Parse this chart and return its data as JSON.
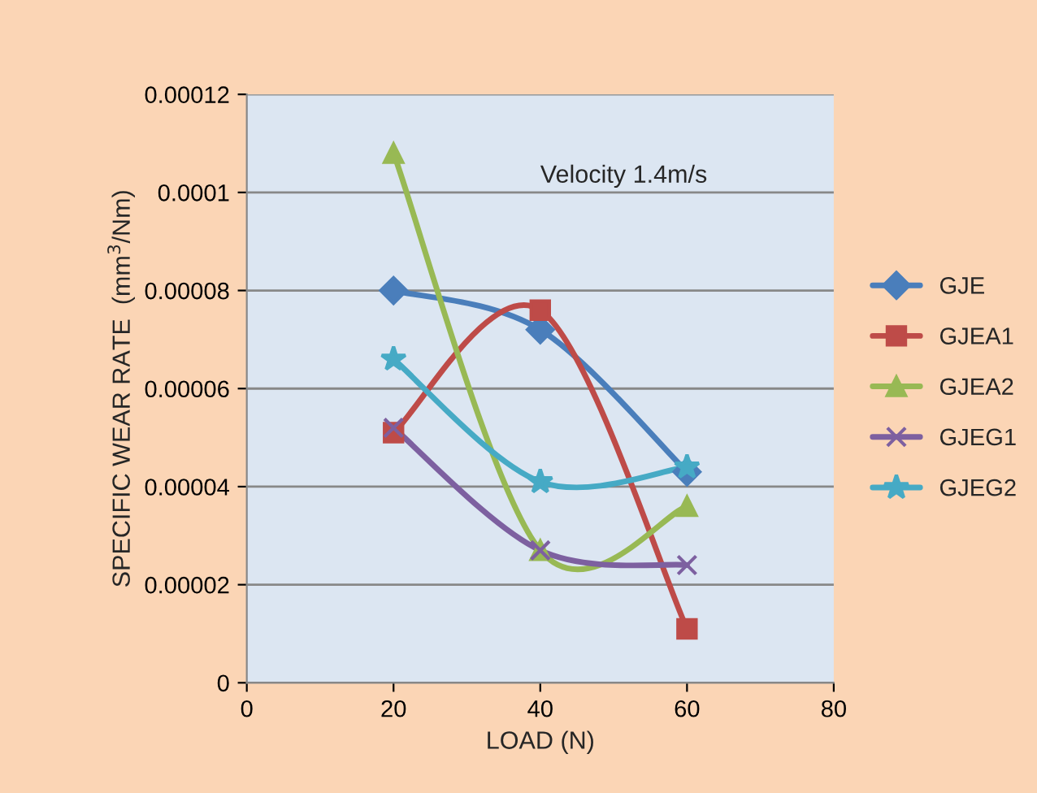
{
  "chart_data": {
    "type": "line",
    "xlabel": "LOAD (N)",
    "ylabel": "SPECIFIC WEAR RATE  (mm$^{3}$/Nm)",
    "annotations": [
      "Velocity 1.4m/s"
    ],
    "x": [
      20,
      40,
      60
    ],
    "series": [
      {
        "name": "GJE",
        "color": "#4a7ebb",
        "marker": "diamond",
        "values": [
          8e-05,
          7.2e-05,
          4.3e-05
        ]
      },
      {
        "name": "GJEA1",
        "color": "#be4b48",
        "marker": "square",
        "values": [
          5.1e-05,
          7.6e-05,
          1.1e-05
        ]
      },
      {
        "name": "GJEA2",
        "color": "#98b954",
        "marker": "triangle",
        "values": [
          0.000108,
          2.7e-05,
          3.6e-05
        ]
      },
      {
        "name": "GJEG1",
        "color": "#7d60a0",
        "marker": "cross",
        "values": [
          5.2e-05,
          2.7e-05,
          2.4e-05
        ]
      },
      {
        "name": "GJEG2",
        "color": "#46aac5",
        "marker": "star",
        "values": [
          6.6e-05,
          4.1e-05,
          4.4e-05
        ]
      }
    ],
    "xlim": [
      0,
      80
    ],
    "xticks": [
      0,
      20,
      40,
      60,
      80
    ],
    "ylim": [
      0,
      0.00012
    ],
    "yticks": [
      0,
      {
        "value": 2e-05,
        "label": "0.00002"
      },
      {
        "value": 4e-05,
        "label": "0.00004"
      },
      {
        "value": 6e-05,
        "label": "0.00006"
      },
      {
        "value": 8e-05,
        "label": "0.00008"
      },
      {
        "value": 0.0001,
        "label": "0.0001"
      },
      {
        "value": 0.00012,
        "label": "0.00012"
      }
    ],
    "grid": "y",
    "legend": "right",
    "line_style": "solid"
  }
}
